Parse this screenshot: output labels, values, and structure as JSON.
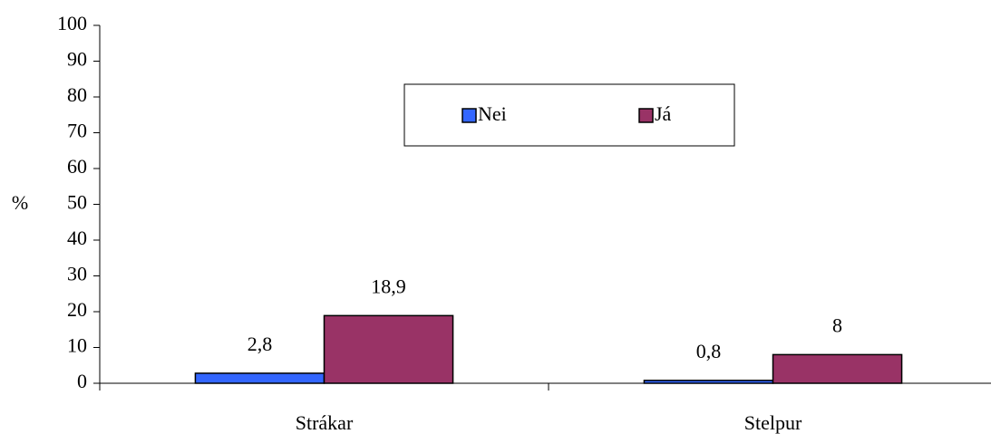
{
  "chart_data": {
    "type": "bar",
    "categories": [
      "Strákar",
      "Stelpur"
    ],
    "series": [
      {
        "name": "Nei",
        "color": "#3366ff",
        "values": [
          2.8,
          0.8
        ],
        "value_labels": [
          "2,8",
          "0,8"
        ]
      },
      {
        "name": "Já",
        "color": "#993366",
        "values": [
          18.9,
          8
        ],
        "value_labels": [
          "18,9",
          "8"
        ]
      }
    ],
    "ylabel": "%",
    "ylim": [
      0,
      100
    ],
    "yticks": [
      0,
      10,
      20,
      30,
      40,
      50,
      60,
      70,
      80,
      90,
      100
    ],
    "grid": false,
    "legend": "top"
  }
}
